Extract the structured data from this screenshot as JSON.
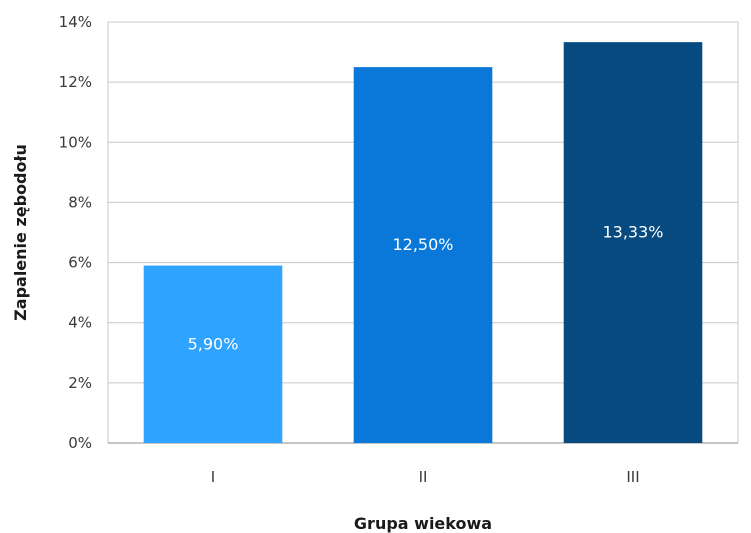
{
  "chart_data": {
    "type": "bar",
    "title": "",
    "xlabel": "Grupa wiekowa",
    "ylabel": "Zapalenie zębodołu",
    "categories": [
      "I",
      "II",
      "III"
    ],
    "values": [
      5.9,
      12.5,
      13.33
    ],
    "data_labels": [
      "5,90%",
      "12,50%",
      "13,33%"
    ],
    "colors": [
      "#2ea3ff",
      "#0a78d8",
      "#064a80"
    ],
    "ylim": [
      0,
      14
    ],
    "yticks": [
      0,
      2,
      4,
      6,
      8,
      10,
      12,
      14
    ],
    "ytick_labels": [
      "0%",
      "2%",
      "4%",
      "6%",
      "8%",
      "10%",
      "12%",
      "14%"
    ],
    "grid": true,
    "legend": "none"
  }
}
